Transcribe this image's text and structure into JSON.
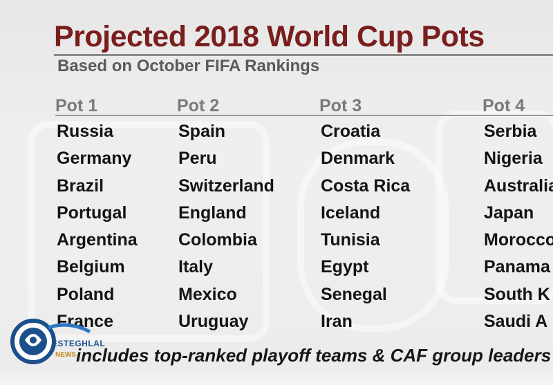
{
  "title": "Projected 2018 World Cup Pots",
  "subtitle": "Based on October FIFA Rankings",
  "pots": [
    {
      "header": "Pot 1",
      "teams": [
        "Russia",
        "Germany",
        "Brazil",
        "Portugal",
        "Argentina",
        "Belgium",
        "Poland",
        "France"
      ]
    },
    {
      "header": "Pot 2",
      "teams": [
        "Spain",
        "Peru",
        "Switzerland",
        "England",
        "Colombia",
        "Italy",
        "Mexico",
        "Uruguay"
      ]
    },
    {
      "header": "Pot 3",
      "teams": [
        "Croatia",
        "Denmark",
        "Costa Rica",
        "Iceland",
        "Tunisia",
        "Egypt",
        "Senegal",
        "Iran"
      ]
    },
    {
      "header": "Pot 4",
      "teams": [
        "Serbia",
        "Nigeria",
        "Australia",
        "Japan",
        "Morocco",
        "Panama",
        "South K",
        "Saudi A"
      ]
    }
  ],
  "footnote": "includes top-ranked playoff teams & CAF group leaders",
  "logo": {
    "name": "ESTEGHLAL",
    "sub": "NEWS",
    "icon": "esteghlal-logo-icon"
  },
  "colors": {
    "title": "#7a1d1d",
    "subtitle": "#5a5a5a",
    "pot_header": "#7a7a7a",
    "team": "#141414",
    "logo_blue": "#1b4f8c"
  }
}
